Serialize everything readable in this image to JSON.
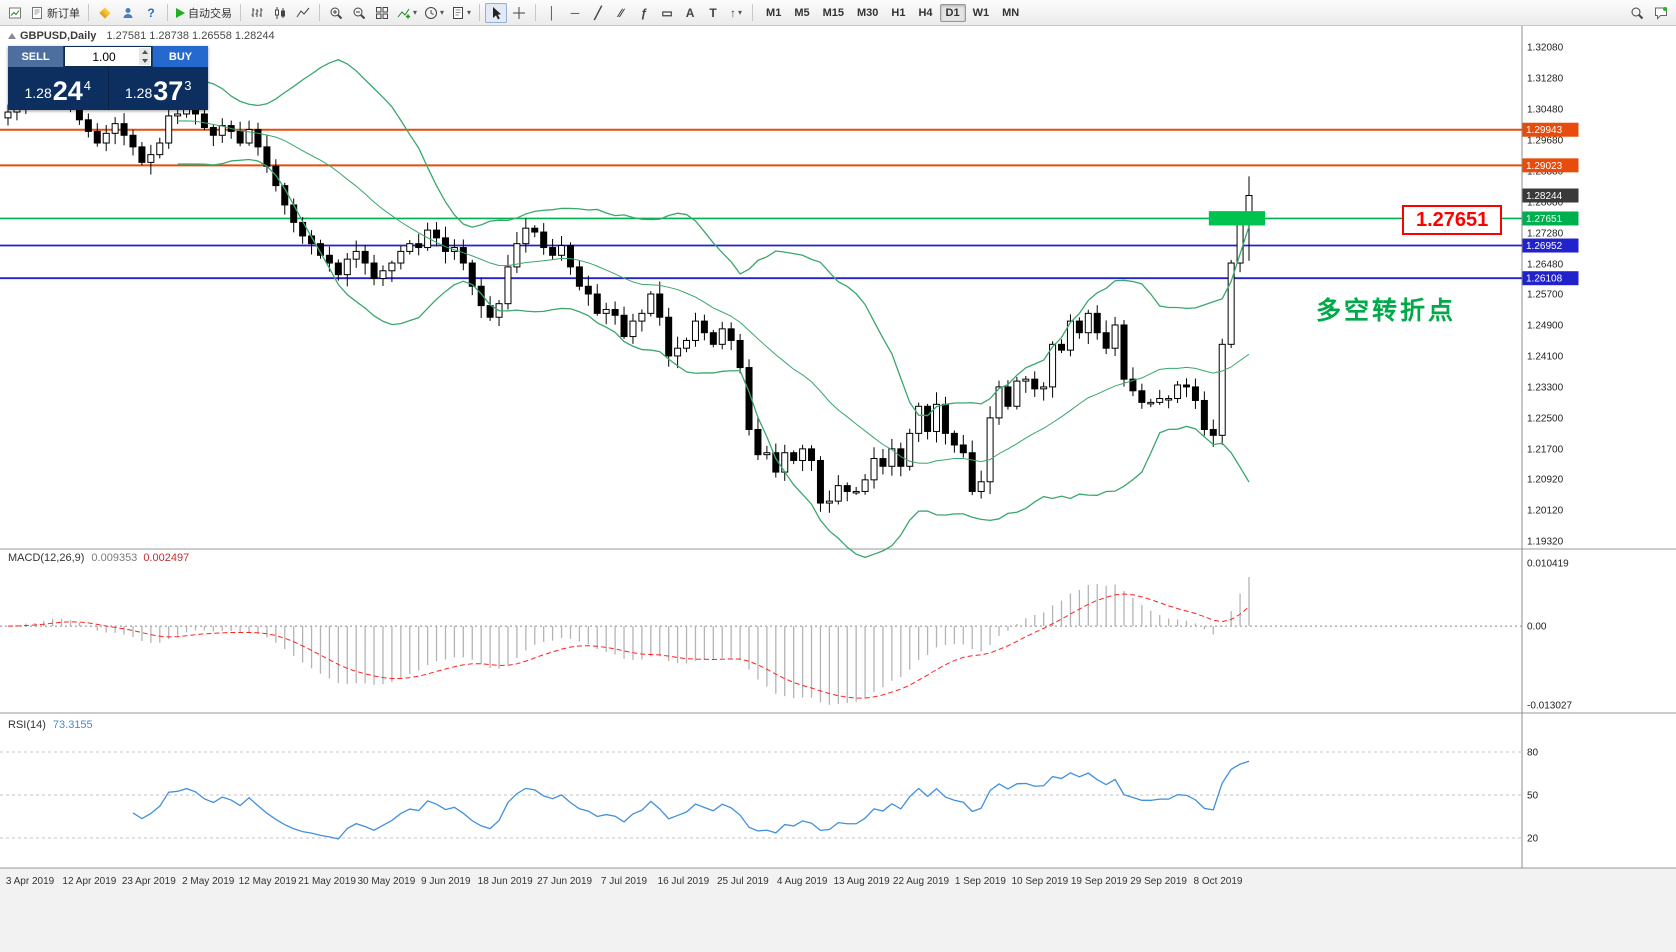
{
  "toolbar": {
    "new_order_label": "新订单",
    "autotrading_label": "自动交易",
    "glyphs": {
      "help": "?",
      "vline": "│",
      "hline": "─",
      "trend": "╱",
      "channel": "∕∕",
      "fibo": "ƒ",
      "shapes": "▭",
      "text": "A",
      "label": "T",
      "arrows": "↑",
      "caret": "▾"
    },
    "timeframes": [
      {
        "label": "M1",
        "active": false
      },
      {
        "label": "M5",
        "active": false
      },
      {
        "label": "M15",
        "active": false
      },
      {
        "label": "M30",
        "active": false
      },
      {
        "label": "H1",
        "active": false
      },
      {
        "label": "H4",
        "active": false
      },
      {
        "label": "D1",
        "active": true
      },
      {
        "label": "W1",
        "active": false
      },
      {
        "label": "MN",
        "active": false
      }
    ]
  },
  "chart_header": {
    "symbol_period": "GBPUSD,Daily",
    "ohlc": "1.27581 1.28738 1.26558 1.28244"
  },
  "trade_panel": {
    "sell_label": "SELL",
    "buy_label": "BUY",
    "volume": "1.00",
    "sell_price_prefix": "1.28",
    "sell_price_big": "24",
    "sell_price_sup": "4",
    "buy_price_prefix": "1.28",
    "buy_price_big": "37",
    "buy_price_sup": "3"
  },
  "indicators": {
    "macd_label": "MACD(12,26,9)",
    "macd_value_main": "0.009353",
    "macd_value_signal": "0.002497",
    "rsi_label": "RSI(14)",
    "rsi_value": "73.3155"
  },
  "annotations": {
    "turning_point": "多空转折点",
    "level_box": "1.27651"
  },
  "chart_data": {
    "type": "candlestick",
    "symbol": "GBPUSD",
    "period": "Daily",
    "y_range": [
      1.1932,
      1.3208
    ],
    "y_ticks": [
      "1.32080",
      "1.31280",
      "1.30480",
      "1.29680",
      "1.28880",
      "1.28080",
      "1.27280",
      "1.26480",
      "1.25700",
      "1.24900",
      "1.24100",
      "1.23300",
      "1.22500",
      "1.21700",
      "1.20920",
      "1.20120",
      "1.19320"
    ],
    "x_labels": [
      "3 Apr 2019",
      "12 Apr 2019",
      "23 Apr 2019",
      "2 May 2019",
      "12 May 2019",
      "21 May 2019",
      "30 May 2019",
      "9 Jun 2019",
      "18 Jun 2019",
      "27 Jun 2019",
      "7 Jul 2019",
      "16 Jul 2019",
      "25 Jul 2019",
      "4 Aug 2019",
      "13 Aug 2019",
      "22 Aug 2019",
      "1 Sep 2019",
      "10 Sep 2019",
      "19 Sep 2019",
      "29 Sep 2019",
      "8 Oct 2019"
    ],
    "closes": [
      1.304,
      1.3055,
      1.308,
      1.3065,
      1.3095,
      1.311,
      1.308,
      1.305,
      1.302,
      1.299,
      1.296,
      1.2985,
      1.301,
      1.298,
      1.295,
      1.291,
      1.293,
      1.296,
      1.303,
      1.3035,
      1.305,
      1.3035,
      1.3,
      1.298,
      1.3005,
      1.299,
      1.296,
      1.2995,
      1.295,
      1.29,
      1.285,
      1.28,
      1.2755,
      1.272,
      1.27,
      1.267,
      1.265,
      1.262,
      1.266,
      1.268,
      1.265,
      1.261,
      1.263,
      1.265,
      1.268,
      1.27,
      1.269,
      1.2735,
      1.2715,
      1.268,
      1.269,
      1.265,
      1.259,
      1.254,
      1.251,
      1.2545,
      1.264,
      1.27,
      1.274,
      1.273,
      1.269,
      1.267,
      1.2695,
      1.264,
      1.259,
      1.257,
      1.252,
      1.253,
      1.2515,
      1.246,
      1.25,
      1.252,
      1.257,
      1.251,
      1.241,
      1.243,
      1.245,
      1.25,
      1.247,
      1.244,
      1.248,
      1.245,
      1.238,
      1.222,
      1.2155,
      1.216,
      1.211,
      1.216,
      1.214,
      1.217,
      1.214,
      1.203,
      1.2035,
      1.2075,
      1.206,
      1.206,
      1.209,
      1.2145,
      1.2125,
      1.217,
      1.2125,
      1.221,
      1.228,
      1.2215,
      1.2285,
      1.221,
      1.218,
      1.216,
      1.206,
      1.2085,
      1.225,
      1.233,
      1.228,
      1.2345,
      1.235,
      1.2325,
      1.233,
      1.244,
      1.2425,
      1.25,
      1.247,
      1.252,
      1.247,
      1.243,
      1.249,
      1.235,
      1.232,
      1.229,
      1.229,
      1.23,
      1.23,
      1.2335,
      1.233,
      1.2295,
      1.222,
      1.2205,
      1.244,
      1.265,
      1.2758,
      1.28244
    ],
    "last_ohlc": {
      "open": 1.27581,
      "high": 1.28738,
      "low": 1.26558,
      "close": 1.28244
    },
    "current_price": {
      "value": 1.28244,
      "label": "1.28244",
      "color": "#3a3a3a"
    },
    "hlines": [
      {
        "value": 1.29943,
        "label": "1.29943",
        "color": "#e84c0c",
        "width": 2
      },
      {
        "value": 1.29023,
        "label": "1.29023",
        "color": "#e84c0c",
        "width": 2
      },
      {
        "value": 1.27651,
        "label": "1.27651",
        "color": "#00b04f",
        "width": 1.6
      },
      {
        "value": 1.26952,
        "label": "1.26952",
        "color": "#2222cc",
        "width": 1.8
      },
      {
        "value": 1.26108,
        "label": "1.26108",
        "color": "#2222cc",
        "width": 1.8
      }
    ],
    "rect": {
      "from": 134.5,
      "to": 140.8,
      "top": 1.2784,
      "bottom": 1.2747,
      "color": "#00c24e"
    },
    "bollinger": {
      "period": 20,
      "deviation": 2,
      "color": "#3aa76d"
    },
    "macd": {
      "fast": 12,
      "slow": 26,
      "signal": 9,
      "ticks": [
        "0.010419",
        "0.00",
        "-0.013027"
      ],
      "hist_color": "#b4b4b4",
      "signal_color": "#ff2222"
    },
    "rsi": {
      "period": 14,
      "levels": [
        80,
        50,
        20
      ],
      "color": "#4090dd"
    },
    "candle_up_color": "#ffffff",
    "candle_down_color": "#000000",
    "candle_border": "#000000"
  }
}
